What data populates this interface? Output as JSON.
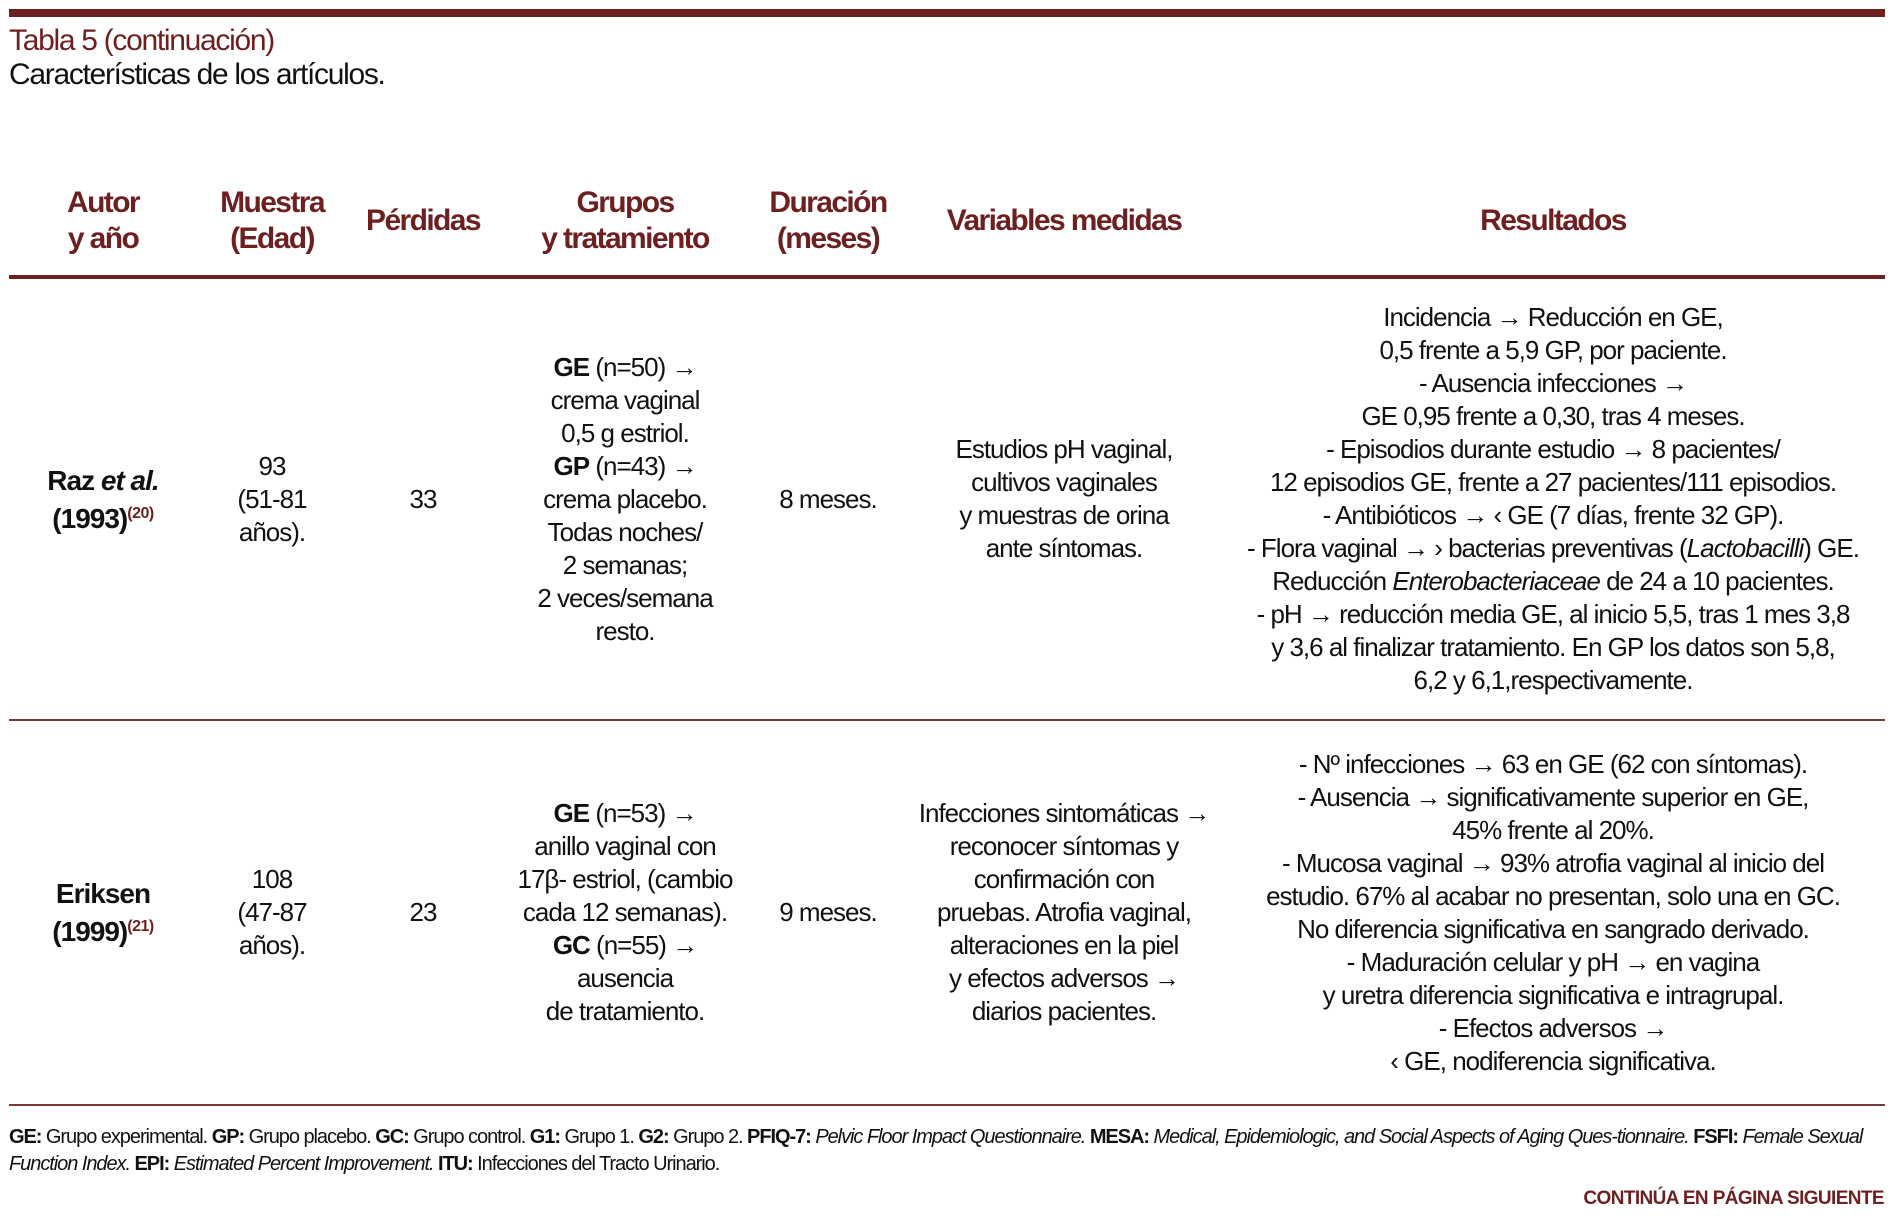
{
  "caption": {
    "title": "Tabla 5 (continuación)",
    "subtitle": "Características de los artículos."
  },
  "headers": [
    "Autor\ny año",
    "Muestra\n(Edad)",
    "Pérdidas",
    "Grupos\ny tratamiento",
    "Duración\n(meses)",
    "Variables medidas",
    "Resultados"
  ],
  "rows": [
    {
      "author": {
        "name": "Raz ",
        "name_italic": "et al.",
        "year": "(1993)",
        "ref": "(20)"
      },
      "sample": [
        "93",
        "(51-81",
        "años)."
      ],
      "losses": [
        "33"
      ],
      "groups": [
        [
          [
            "GE",
            "b"
          ],
          [
            " (n=50) →",
            ""
          ]
        ],
        "crema vaginal",
        "0,5 g estriol.",
        [
          [
            "GP",
            "b"
          ],
          [
            " (n=43) →",
            ""
          ]
        ],
        "crema placebo.",
        "Todas noches/",
        "2 semanas;",
        "2 veces/semana",
        "resto."
      ],
      "duration": [
        "8 meses."
      ],
      "variables": [
        "Estudios pH vaginal,",
        "cultivos vaginales",
        "y muestras de orina",
        "ante síntomas."
      ],
      "results": [
        "Incidencia → Reducción en GE,",
        "0,5 frente a 5,9 GP, por paciente.",
        "- Ausencia infecciones →",
        "GE 0,95 frente a 0,30, tras 4 meses.",
        "- Episodios durante estudio → 8 pacientes/",
        "12 episodios GE, frente a 27 pacientes/111 episodios.",
        "- Antibióticos → ‹ GE (7 días, frente 32 GP).",
        [
          [
            "- Flora vaginal → › bacterias preventivas (",
            ""
          ],
          [
            "Lactobacilli",
            "i"
          ],
          [
            ") GE.",
            ""
          ]
        ],
        [
          [
            "Reducción ",
            ""
          ],
          [
            "Enterobacteriaceae",
            "i"
          ],
          [
            " de 24 a 10 pacientes.",
            ""
          ]
        ],
        "- pH → reducción media GE, al inicio 5,5, tras 1 mes 3,8",
        "y 3,6 al finalizar tratamiento. En GP los datos son 5,8,",
        "6,2 y 6,1,respectivamente."
      ]
    },
    {
      "author": {
        "name": "Eriksen",
        "name_italic": "",
        "year": "(1999)",
        "ref": "(21)"
      },
      "sample": [
        "108",
        "(47-87",
        "años)."
      ],
      "losses": [
        "23"
      ],
      "groups": [
        [
          [
            "GE",
            "b"
          ],
          [
            " (n=53) →",
            ""
          ]
        ],
        "anillo vaginal con",
        "17β- estriol, (cambio",
        "cada 12 semanas).",
        [
          [
            "GC",
            "b"
          ],
          [
            " (n=55) →",
            ""
          ]
        ],
        "ausencia",
        "de tratamiento."
      ],
      "duration": [
        "9 meses."
      ],
      "variables": [
        "Infecciones sintomáticas →",
        "reconocer síntomas y",
        "confirmación con",
        "pruebas. Atrofia vaginal,",
        "alteraciones en la piel",
        "y efectos adversos →",
        "diarios pacientes."
      ],
      "results": [
        "- Nº infecciones → 63 en GE (62 con síntomas).",
        "- Ausencia → significativamente superior en GE,",
        "45% frente al 20%.",
        "- Mucosa vaginal → 93% atrofia vaginal al inicio del",
        "estudio. 67% al acabar no presentan, solo una en GC.",
        "No diferencia significativa en sangrado derivado.",
        "- Maduración celular y pH → en vagina",
        "y uretra diferencia significativa e intragrupal.",
        "- Efectos adversos →",
        "‹ GE, nodiferencia significativa."
      ]
    }
  ],
  "footnote": [
    [
      "GE:",
      "b"
    ],
    [
      " Grupo experimental. ",
      ""
    ],
    [
      "GP:",
      "b"
    ],
    [
      " Grupo placebo. ",
      ""
    ],
    [
      "GC:",
      "b"
    ],
    [
      " Grupo control. ",
      ""
    ],
    [
      "G1:",
      "b"
    ],
    [
      " Grupo 1. ",
      ""
    ],
    [
      "G2:",
      "b"
    ],
    [
      " Grupo 2. ",
      ""
    ],
    [
      "PFIQ-7:",
      "b"
    ],
    [
      " ",
      ""
    ],
    [
      "Pelvic Floor Impact Questionnaire.",
      "i"
    ],
    [
      " ",
      ""
    ],
    [
      "MESA:",
      "b"
    ],
    [
      " ",
      ""
    ],
    [
      "Medical, Epidemiologic, and Social Aspects of Aging Ques-tionnaire.",
      "i"
    ],
    [
      " ",
      ""
    ],
    [
      "FSFI:",
      "b"
    ],
    [
      " ",
      ""
    ],
    [
      "Female Sexual Function Index.",
      "i"
    ],
    [
      " ",
      ""
    ],
    [
      "EPI:",
      "b"
    ],
    [
      " ",
      ""
    ],
    [
      "Estimated Percent Improvement.",
      "i"
    ],
    [
      " ",
      ""
    ],
    [
      "ITU:",
      "b"
    ],
    [
      " Infecciones del Tracto Urinario.",
      ""
    ]
  ],
  "continue_label": "CONTINÚA EN PÁGINA SIGUIENTE",
  "colors": {
    "accent": "#6e1f20",
    "text": "#111111"
  }
}
